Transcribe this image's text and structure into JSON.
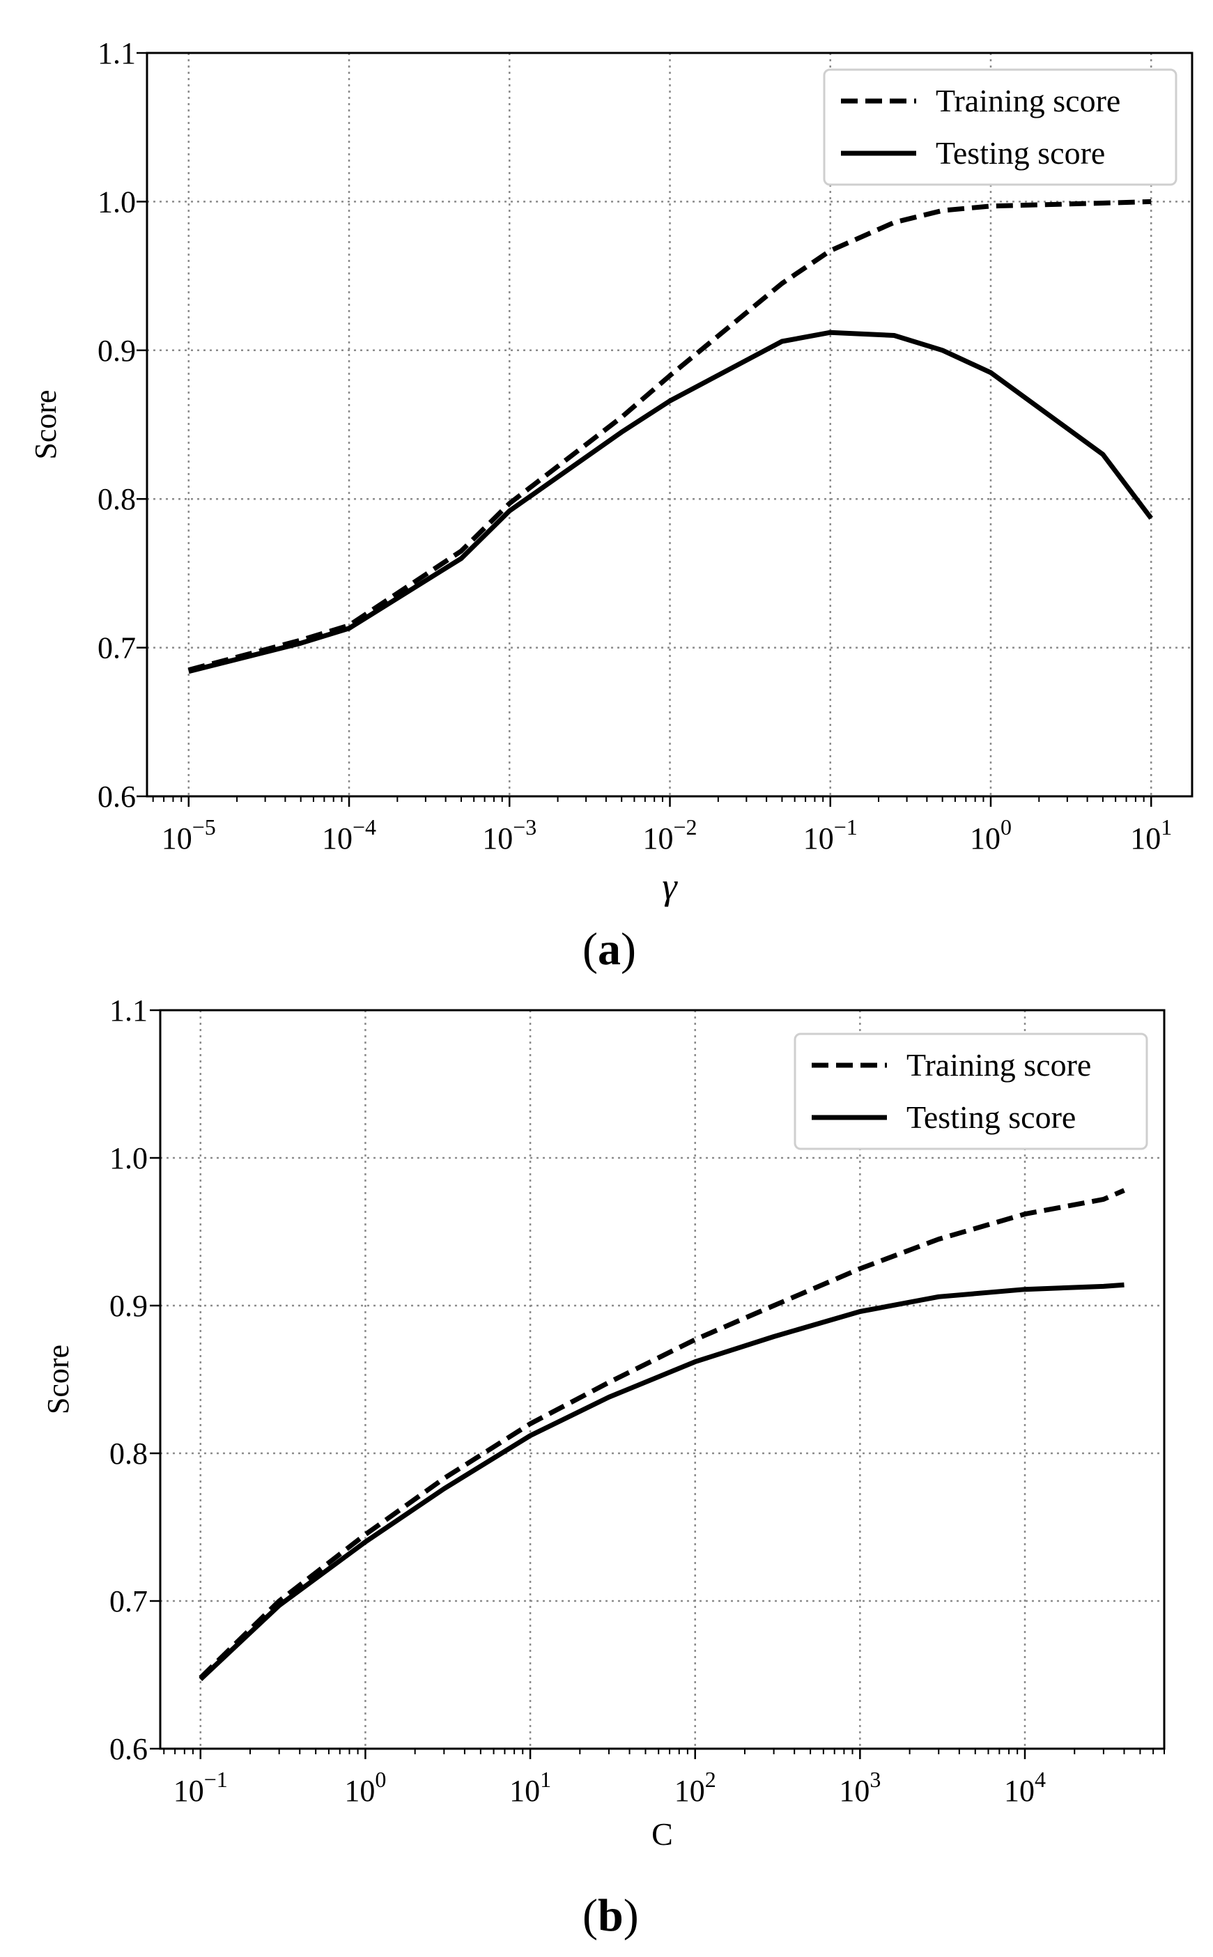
{
  "chart_data": [
    {
      "type": "line",
      "xscale": "log",
      "xlim": [
        5.5e-06,
        18
      ],
      "ylim": [
        0.6,
        1.1
      ],
      "yticks": [
        "0.6",
        "0.7",
        "0.8",
        "0.9",
        "1.0",
        "1.1"
      ],
      "yticks_values": [
        0.6,
        0.7,
        0.8,
        0.9,
        1.0,
        1.1
      ],
      "xticks": [
        {
          "base": "10",
          "exp": "−5",
          "v": 1e-05
        },
        {
          "base": "10",
          "exp": "−4",
          "v": 0.0001
        },
        {
          "base": "10",
          "exp": "−3",
          "v": 0.001
        },
        {
          "base": "10",
          "exp": "−2",
          "v": 0.01
        },
        {
          "base": "10",
          "exp": "−1",
          "v": 0.1
        },
        {
          "base": "10",
          "exp": "0",
          "v": 1
        },
        {
          "base": "10",
          "exp": "1",
          "v": 10
        }
      ],
      "xlabel": "γ",
      "ylabel": "Score",
      "grid": true,
      "legend": "top-right",
      "panel_label": {
        "open": "(",
        "letter": "a",
        "close": ")"
      },
      "series": [
        {
          "name": "Training score",
          "style": "dashed",
          "x": [
            1e-05,
            5e-05,
            0.0001,
            0.0005,
            0.001,
            0.005,
            0.01,
            0.05,
            0.1,
            0.25,
            0.5,
            1,
            5,
            10
          ],
          "y": [
            0.685,
            0.705,
            0.715,
            0.765,
            0.797,
            0.855,
            0.883,
            0.945,
            0.967,
            0.986,
            0.994,
            0.997,
            0.999,
            1.0
          ]
        },
        {
          "name": "Testing score",
          "style": "solid",
          "x": [
            1e-05,
            5e-05,
            0.0001,
            0.0005,
            0.001,
            0.005,
            0.01,
            0.05,
            0.1,
            0.25,
            0.5,
            1,
            5,
            10
          ],
          "y": [
            0.684,
            0.703,
            0.713,
            0.76,
            0.792,
            0.845,
            0.866,
            0.906,
            0.912,
            0.91,
            0.9,
            0.885,
            0.83,
            0.787
          ]
        }
      ]
    },
    {
      "type": "line",
      "xscale": "log",
      "xlim": [
        0.057,
        70000
      ],
      "ylim": [
        0.6,
        1.1
      ],
      "yticks": [
        "0.6",
        "0.7",
        "0.8",
        "0.9",
        "1.0",
        "1.1"
      ],
      "yticks_values": [
        0.6,
        0.7,
        0.8,
        0.9,
        1.0,
        1.1
      ],
      "xticks": [
        {
          "base": "10",
          "exp": "−1",
          "v": 0.1
        },
        {
          "base": "10",
          "exp": "0",
          "v": 1
        },
        {
          "base": "10",
          "exp": "1",
          "v": 10
        },
        {
          "base": "10",
          "exp": "2",
          "v": 100
        },
        {
          "base": "10",
          "exp": "3",
          "v": 1000
        },
        {
          "base": "10",
          "exp": "4",
          "v": 10000
        }
      ],
      "xlabel": "C",
      "ylabel": "Score",
      "grid": true,
      "legend": "top-right",
      "panel_label": {
        "open": "(",
        "letter": "b",
        "close": ")"
      },
      "series": [
        {
          "name": "Training score",
          "style": "dashed",
          "x": [
            0.1,
            0.3,
            1,
            3,
            10,
            30,
            100,
            300,
            1000,
            3000,
            10000,
            30000,
            40000
          ],
          "y": [
            0.648,
            0.7,
            0.745,
            0.783,
            0.82,
            0.848,
            0.877,
            0.9,
            0.925,
            0.945,
            0.962,
            0.972,
            0.978
          ]
        },
        {
          "name": "Testing score",
          "style": "solid",
          "x": [
            0.1,
            0.3,
            1,
            3,
            10,
            30,
            100,
            300,
            1000,
            3000,
            10000,
            30000,
            40000
          ],
          "y": [
            0.647,
            0.697,
            0.74,
            0.776,
            0.812,
            0.838,
            0.862,
            0.879,
            0.896,
            0.906,
            0.911,
            0.913,
            0.914
          ]
        }
      ]
    }
  ]
}
